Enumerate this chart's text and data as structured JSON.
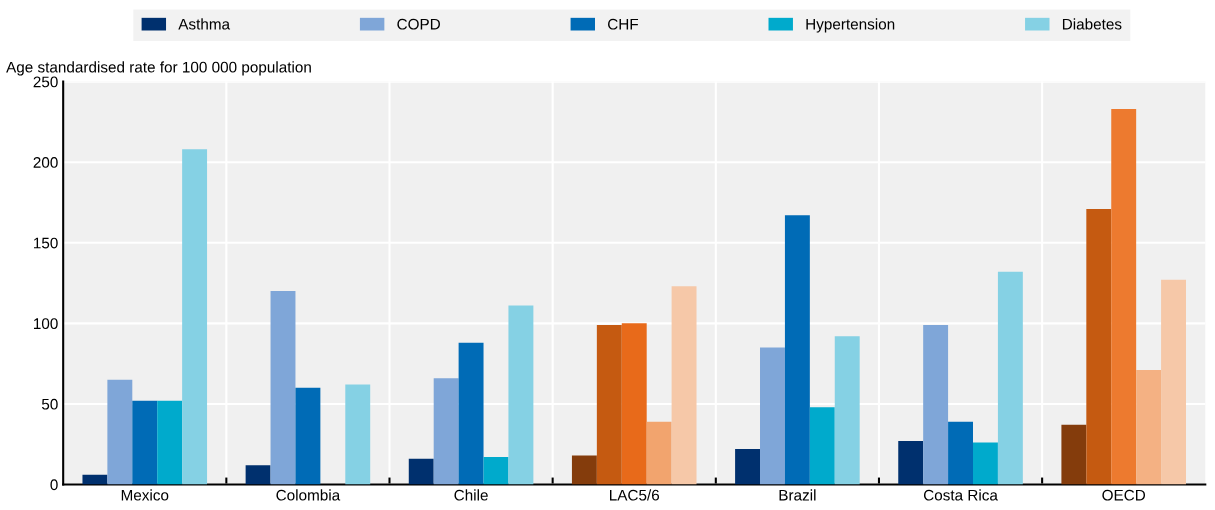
{
  "chart_data": {
    "type": "bar",
    "ylabel": "Age standardised rate for 100 000 population",
    "categories": [
      "Mexico",
      "Colombia",
      "Chile",
      "LAC5/6",
      "Brazil",
      "Costa Rica",
      "OECD"
    ],
    "series": [
      {
        "name": "Asthma",
        "color": "#00306e",
        "colors": [
          "#00306e",
          "#00306e",
          "#00306e",
          "#843c0c",
          "#00306e",
          "#00306e",
          "#843c0c"
        ],
        "values": [
          6,
          12,
          16,
          18,
          22,
          27,
          37
        ]
      },
      {
        "name": "COPD",
        "color": "#7fa6d8",
        "colors": [
          "#7fa6d8",
          "#7fa6d8",
          "#7fa6d8",
          "#c55a11",
          "#7fa6d8",
          "#7fa6d8",
          "#c55a11"
        ],
        "values": [
          65,
          120,
          66,
          99,
          85,
          99,
          171
        ]
      },
      {
        "name": "CHF",
        "color": "#006bb6",
        "colors": [
          "#006bb6",
          "#006bb6",
          "#006bb6",
          "#e86a1a",
          "#006bb6",
          "#006bb6",
          "#ed7a2f"
        ],
        "values": [
          52,
          60,
          88,
          100,
          167,
          39,
          233
        ]
      },
      {
        "name": "Hypertension",
        "color": "#00aacc",
        "colors": [
          "#00aacc",
          "#00aacc",
          "#00aacc",
          "#f2a46e",
          "#00aacc",
          "#00aacc",
          "#f4b183"
        ],
        "values": [
          52,
          null,
          17,
          39,
          48,
          26,
          71
        ]
      },
      {
        "name": "Diabetes",
        "color": "#85d1e4",
        "colors": [
          "#85d1e4",
          "#85d1e4",
          "#85d1e4",
          "#f6c8a8",
          "#85d1e4",
          "#85d1e4",
          "#f6c8a8"
        ],
        "values": [
          208,
          62,
          111,
          123,
          92,
          132,
          127
        ]
      }
    ],
    "ylim": [
      0,
      250
    ],
    "yticks": [
      0,
      50,
      100,
      150,
      200,
      250
    ],
    "grid": true,
    "legend": "top"
  }
}
